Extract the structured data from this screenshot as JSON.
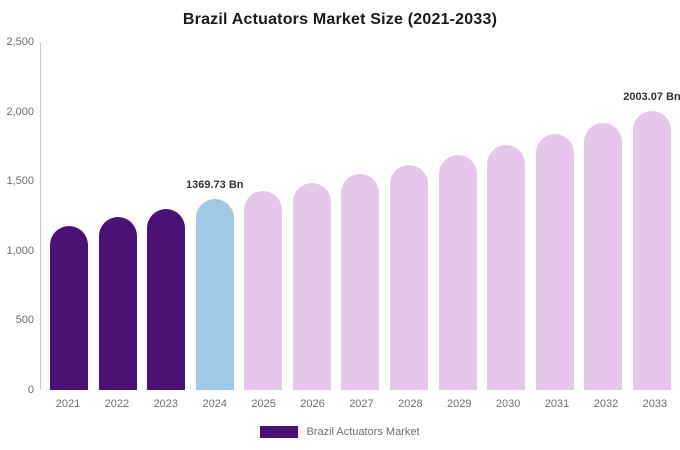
{
  "title": "Brazil Actuators Market Size (2021-2033)",
  "legend": {
    "label": "Brazil Actuators Market",
    "swatch_color": "#4a1277"
  },
  "colors": {
    "historical": "#4a1277",
    "current": "#9dc9e4",
    "forecast": "#e7c6ec",
    "axis_line": "#c9c9c9",
    "tick_text": "#6e6e6e",
    "annotation_text": "#333333"
  },
  "chart_data": {
    "type": "bar",
    "title": "Brazil Actuators Market Size (2021-2033)",
    "xlabel": "",
    "ylabel": "",
    "ylim": [
      0,
      2500
    ],
    "grid": false,
    "legend_position": "bottom",
    "yticks": [
      {
        "value": 0,
        "label": "0"
      },
      {
        "value": 500,
        "label": "500"
      },
      {
        "value": 1000,
        "label": "1,000"
      },
      {
        "value": 1500,
        "label": "1,500"
      },
      {
        "value": 2000,
        "label": "2,000"
      },
      {
        "value": 2500,
        "label": "2,500"
      }
    ],
    "categories": [
      "2021",
      "2022",
      "2023",
      "2024",
      "2025",
      "2026",
      "2027",
      "2028",
      "2029",
      "2030",
      "2031",
      "2032",
      "2033"
    ],
    "series": [
      {
        "name": "Brazil Actuators Market",
        "unit": "Bn",
        "values": [
          1180,
          1240,
          1300,
          1369.73,
          1428,
          1489,
          1553,
          1620,
          1689,
          1762,
          1837,
          1916,
          2003.07
        ]
      }
    ],
    "bar_color_keys": [
      "historical",
      "historical",
      "historical",
      "current",
      "forecast",
      "forecast",
      "forecast",
      "forecast",
      "forecast",
      "forecast",
      "forecast",
      "forecast",
      "forecast"
    ],
    "annotations": [
      {
        "category_index": 3,
        "text": "1369.73 Bn"
      },
      {
        "category_index": 12,
        "text": "2003.07 Bn"
      }
    ]
  }
}
